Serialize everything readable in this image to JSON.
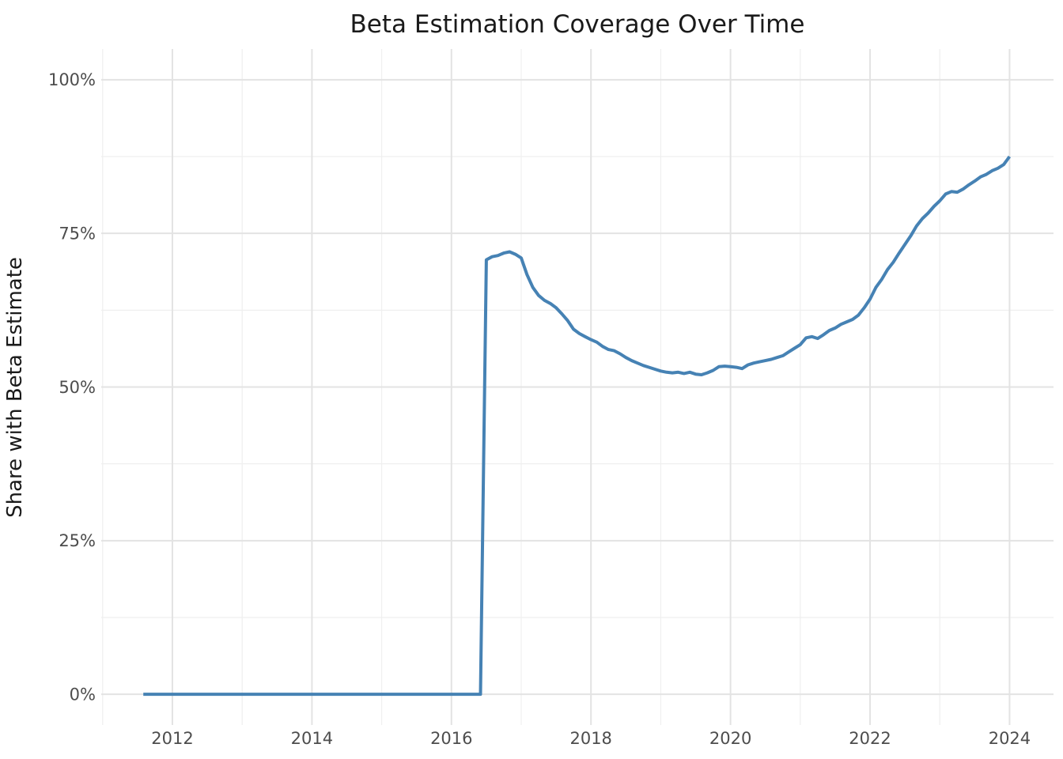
{
  "chart_data": {
    "type": "line",
    "title": "Beta Estimation Coverage Over Time",
    "xlabel": "",
    "ylabel": "Share with Beta Estimate",
    "legend": "none",
    "grid": true,
    "unit": "percent",
    "frequency": "monthly",
    "start_month": "2011-08",
    "series": [
      {
        "name": "share_with_beta_estimate",
        "values": [
          0,
          0,
          0,
          0,
          0,
          0,
          0,
          0,
          0,
          0,
          0,
          0,
          0,
          0,
          0,
          0,
          0,
          0,
          0,
          0,
          0,
          0,
          0,
          0,
          0,
          0,
          0,
          0,
          0,
          0,
          0,
          0,
          0,
          0,
          0,
          0,
          0,
          0,
          0,
          0,
          0,
          0,
          0,
          0,
          0,
          0,
          0,
          0,
          0,
          0,
          0,
          0,
          0,
          0,
          0,
          0,
          0,
          0,
          0,
          70.7,
          71.2,
          71.4,
          71.8,
          72.0,
          71.6,
          71.0,
          68.3,
          66.2,
          64.9,
          64.1,
          63.6,
          62.9,
          61.9,
          60.8,
          59.4,
          58.7,
          58.2,
          57.7,
          57.3,
          56.6,
          56.1,
          55.9,
          55.4,
          54.8,
          54.3,
          53.9,
          53.5,
          53.2,
          52.9,
          52.6,
          52.4,
          52.3,
          52.4,
          52.2,
          52.4,
          52.1,
          52.0,
          52.3,
          52.7,
          53.3,
          53.4,
          53.3,
          53.2,
          53.0,
          53.6,
          53.9,
          54.1,
          54.3,
          54.5,
          54.8,
          55.1,
          55.7,
          56.3,
          56.9,
          58.0,
          58.2,
          57.9,
          58.5,
          59.2,
          59.6,
          60.2,
          60.6,
          61.0,
          61.7,
          62.9,
          64.3,
          66.2,
          67.5,
          69.1,
          70.3,
          71.8,
          73.2,
          74.6,
          76.2,
          77.4,
          78.3,
          79.4,
          80.3,
          81.4,
          81.8,
          81.7,
          82.2,
          82.9,
          83.5,
          84.2,
          84.6,
          85.2,
          85.6,
          86.2,
          87.5
        ]
      }
    ],
    "x_major_ticks": [
      {
        "value": 2012,
        "label": "2012"
      },
      {
        "value": 2014,
        "label": "2014"
      },
      {
        "value": 2016,
        "label": "2016"
      },
      {
        "value": 2018,
        "label": "2018"
      },
      {
        "value": 2020,
        "label": "2020"
      },
      {
        "value": 2022,
        "label": "2022"
      },
      {
        "value": 2024,
        "label": "2024"
      }
    ],
    "x_minor_ticks": [
      2011,
      2013,
      2015,
      2017,
      2019,
      2021,
      2023
    ],
    "y_major_ticks": [
      {
        "value": 0,
        "label": "0%"
      },
      {
        "value": 25,
        "label": "25%"
      },
      {
        "value": 50,
        "label": "50%"
      },
      {
        "value": 75,
        "label": "75%"
      },
      {
        "value": 100,
        "label": "100%"
      }
    ],
    "y_minor_ticks": [
      12.5,
      37.5,
      62.5,
      87.5
    ],
    "xlim": [
      2010.98,
      2024.63
    ],
    "ylim": [
      -5,
      105
    ],
    "colors": {
      "line": "#4682b4",
      "grid_major": "#e3e3e3",
      "grid_minor": "#efefef",
      "tick_text": "#4d4d4d",
      "title_text": "#1a1a1a",
      "background": "#ffffff"
    }
  }
}
